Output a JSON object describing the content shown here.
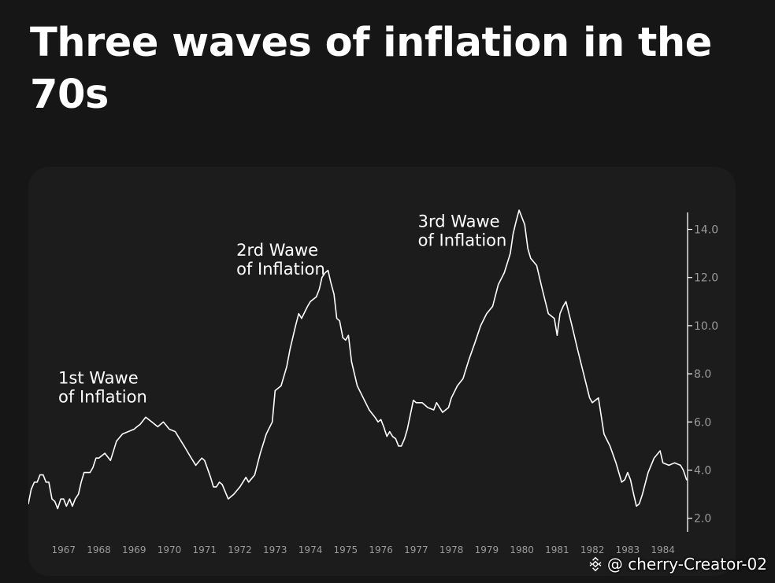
{
  "title": "Three waves of inflation in the 70s",
  "watermark": {
    "text": "@ cherry-Creator-02",
    "icon": "binance-logo-icon"
  },
  "colors": {
    "background": "#161616",
    "card": "#1c1c1c",
    "line": "#ffffff",
    "axis": "#ffffff",
    "tick_text": "#9a9a9a"
  },
  "chart_data": {
    "type": "line",
    "title": "",
    "xlabel": "",
    "ylabel": "",
    "xlim": [
      1966.0,
      1984.7
    ],
    "ylim": [
      1.5,
      14.9
    ],
    "grid": false,
    "legend": "none",
    "x_ticks": [
      {
        "value": 1967,
        "label": "1967"
      },
      {
        "value": 1968,
        "label": "1968"
      },
      {
        "value": 1969,
        "label": "1969"
      },
      {
        "value": 1970,
        "label": "1970"
      },
      {
        "value": 1971,
        "label": "1971"
      },
      {
        "value": 1972,
        "label": "1972"
      },
      {
        "value": 1973,
        "label": "1973"
      },
      {
        "value": 1974,
        "label": "1974"
      },
      {
        "value": 1975,
        "label": "1975"
      },
      {
        "value": 1976,
        "label": "1976"
      },
      {
        "value": 1977,
        "label": "1977"
      },
      {
        "value": 1978,
        "label": "1978"
      },
      {
        "value": 1979,
        "label": "1979"
      },
      {
        "value": 1980,
        "label": "1980"
      },
      {
        "value": 1981,
        "label": "1981"
      },
      {
        "value": 1982,
        "label": "1982"
      },
      {
        "value": 1983,
        "label": "1983"
      },
      {
        "value": 1984,
        "label": "1984"
      }
    ],
    "y_ticks": [
      {
        "value": 2,
        "label": "2.0"
      },
      {
        "value": 4,
        "label": "4.0"
      },
      {
        "value": 6,
        "label": "6.0"
      },
      {
        "value": 8,
        "label": "8.0"
      },
      {
        "value": 10,
        "label": "10.0"
      },
      {
        "value": 12,
        "label": "12.0"
      },
      {
        "value": 14,
        "label": "14.0"
      }
    ],
    "annotations": [
      {
        "lines": [
          "1st Wawe",
          "of Inflation"
        ],
        "x": 1966.85,
        "y": 7.6
      },
      {
        "lines": [
          "2rd Wawe",
          "of Inflation"
        ],
        "x": 1971.9,
        "y": 12.9
      },
      {
        "lines": [
          "3rd Wawe",
          "of Inflation"
        ],
        "x": 1977.05,
        "y": 14.1
      }
    ],
    "series": [
      {
        "x": [
          1966.0,
          1966.08,
          1966.17,
          1966.25,
          1966.33,
          1966.42,
          1966.5,
          1966.58,
          1966.67,
          1966.75,
          1966.83,
          1966.92,
          1967.0,
          1967.08,
          1967.17,
          1967.25,
          1967.33,
          1967.42,
          1967.5,
          1967.58,
          1967.67,
          1967.75,
          1967.83,
          1967.92,
          1968.0,
          1968.17,
          1968.33,
          1968.5,
          1968.67,
          1968.83,
          1969.0,
          1969.08,
          1969.17,
          1969.33,
          1969.5,
          1969.67,
          1969.83,
          1970.0,
          1970.17,
          1970.25,
          1970.42,
          1970.58,
          1970.75,
          1970.92,
          1971.0,
          1971.17,
          1971.25,
          1971.33,
          1971.42,
          1971.5,
          1971.67,
          1971.83,
          1972.0,
          1972.17,
          1972.25,
          1972.42,
          1972.58,
          1972.75,
          1972.92,
          1973.0,
          1973.17,
          1973.33,
          1973.42,
          1973.58,
          1973.67,
          1973.75,
          1973.92,
          1974.0,
          1974.17,
          1974.25,
          1974.33,
          1974.42,
          1974.5,
          1974.58,
          1974.67,
          1974.75,
          1974.83,
          1974.92,
          1975.0,
          1975.08,
          1975.17,
          1975.33,
          1975.5,
          1975.67,
          1975.83,
          1975.92,
          1976.0,
          1976.08,
          1976.17,
          1976.25,
          1976.33,
          1976.42,
          1976.5,
          1976.58,
          1976.67,
          1976.75,
          1976.92,
          1977.0,
          1977.17,
          1977.33,
          1977.5,
          1977.58,
          1977.75,
          1977.92,
          1978.0,
          1978.17,
          1978.33,
          1978.5,
          1978.67,
          1978.83,
          1979.0,
          1979.17,
          1979.33,
          1979.5,
          1979.67,
          1979.75,
          1979.83,
          1979.92,
          1980.0,
          1980.08,
          1980.17,
          1980.25,
          1980.42,
          1980.58,
          1980.75,
          1980.92,
          1981.0,
          1981.08,
          1981.17,
          1981.25,
          1981.42,
          1981.58,
          1981.75,
          1981.92,
          1982.0,
          1982.17,
          1982.33,
          1982.5,
          1982.67,
          1982.75,
          1982.83,
          1982.92,
          1983.0,
          1983.08,
          1983.17,
          1983.25,
          1983.33,
          1983.42,
          1983.58,
          1983.75,
          1983.92,
          1984.0,
          1984.17,
          1984.33,
          1984.5,
          1984.58,
          1984.67
        ],
        "values": [
          2.6,
          3.2,
          3.5,
          3.5,
          3.8,
          3.8,
          3.5,
          3.5,
          2.8,
          2.7,
          2.4,
          2.8,
          2.8,
          2.5,
          2.8,
          2.5,
          2.8,
          3.0,
          3.5,
          3.9,
          3.9,
          3.9,
          4.1,
          4.5,
          4.5,
          4.7,
          4.4,
          5.2,
          5.5,
          5.6,
          5.7,
          5.8,
          5.9,
          6.2,
          6.0,
          5.8,
          6.0,
          5.7,
          5.6,
          5.4,
          5.0,
          4.6,
          4.2,
          4.5,
          4.4,
          3.7,
          3.3,
          3.3,
          3.5,
          3.4,
          2.8,
          3.0,
          3.3,
          3.7,
          3.5,
          3.8,
          4.7,
          5.5,
          6.0,
          7.3,
          7.5,
          8.3,
          9.0,
          10.0,
          10.5,
          10.3,
          10.8,
          11.0,
          11.2,
          11.5,
          12.0,
          12.2,
          12.3,
          11.8,
          11.3,
          10.3,
          10.2,
          9.5,
          9.4,
          9.6,
          8.5,
          7.5,
          7.0,
          6.5,
          6.2,
          6.0,
          6.1,
          5.8,
          5.4,
          5.6,
          5.4,
          5.3,
          5.0,
          5.0,
          5.3,
          5.7,
          6.9,
          6.8,
          6.8,
          6.6,
          6.5,
          6.8,
          6.4,
          6.6,
          7.0,
          7.5,
          7.8,
          8.6,
          9.3,
          10.0,
          10.5,
          10.8,
          11.7,
          12.2,
          13.0,
          13.8,
          14.3,
          14.8,
          14.5,
          14.2,
          13.2,
          12.8,
          12.5,
          11.5,
          10.5,
          10.3,
          9.6,
          10.5,
          10.8,
          11.0,
          10.0,
          9.0,
          8.0,
          7.0,
          6.8,
          7.0,
          5.5,
          5.0,
          4.3,
          3.9,
          3.5,
          3.6,
          3.9,
          3.6,
          3.0,
          2.5,
          2.6,
          3.0,
          3.9,
          4.5,
          4.8,
          4.3,
          4.2,
          4.3,
          4.2,
          4.0,
          3.6
        ]
      }
    ]
  }
}
